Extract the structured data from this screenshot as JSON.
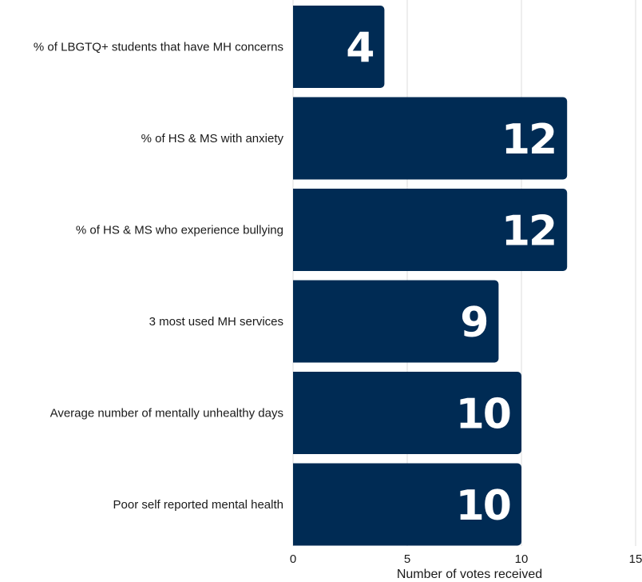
{
  "chart_data": {
    "type": "bar",
    "orientation": "horizontal",
    "categories": [
      "% of LBGTQ+ students that have MH concerns",
      "% of HS & MS with anxiety",
      "% of HS & MS who experience bullying",
      "3 most used MH services",
      "Average number of mentally unhealthy days",
      "Poor self reported mental health"
    ],
    "values": [
      4,
      12,
      12,
      9,
      10,
      10
    ],
    "data_labels": [
      "4",
      "12",
      "12",
      "9",
      "10",
      "10"
    ],
    "xlabel": "Number of votes received",
    "xlim": [
      0,
      15
    ],
    "xticks": [
      0,
      5,
      10,
      15
    ],
    "xtick_labels": [
      "0",
      "5",
      "10",
      "15"
    ],
    "grid": "vertical",
    "legend": "none",
    "bar_color": "#002B54"
  }
}
